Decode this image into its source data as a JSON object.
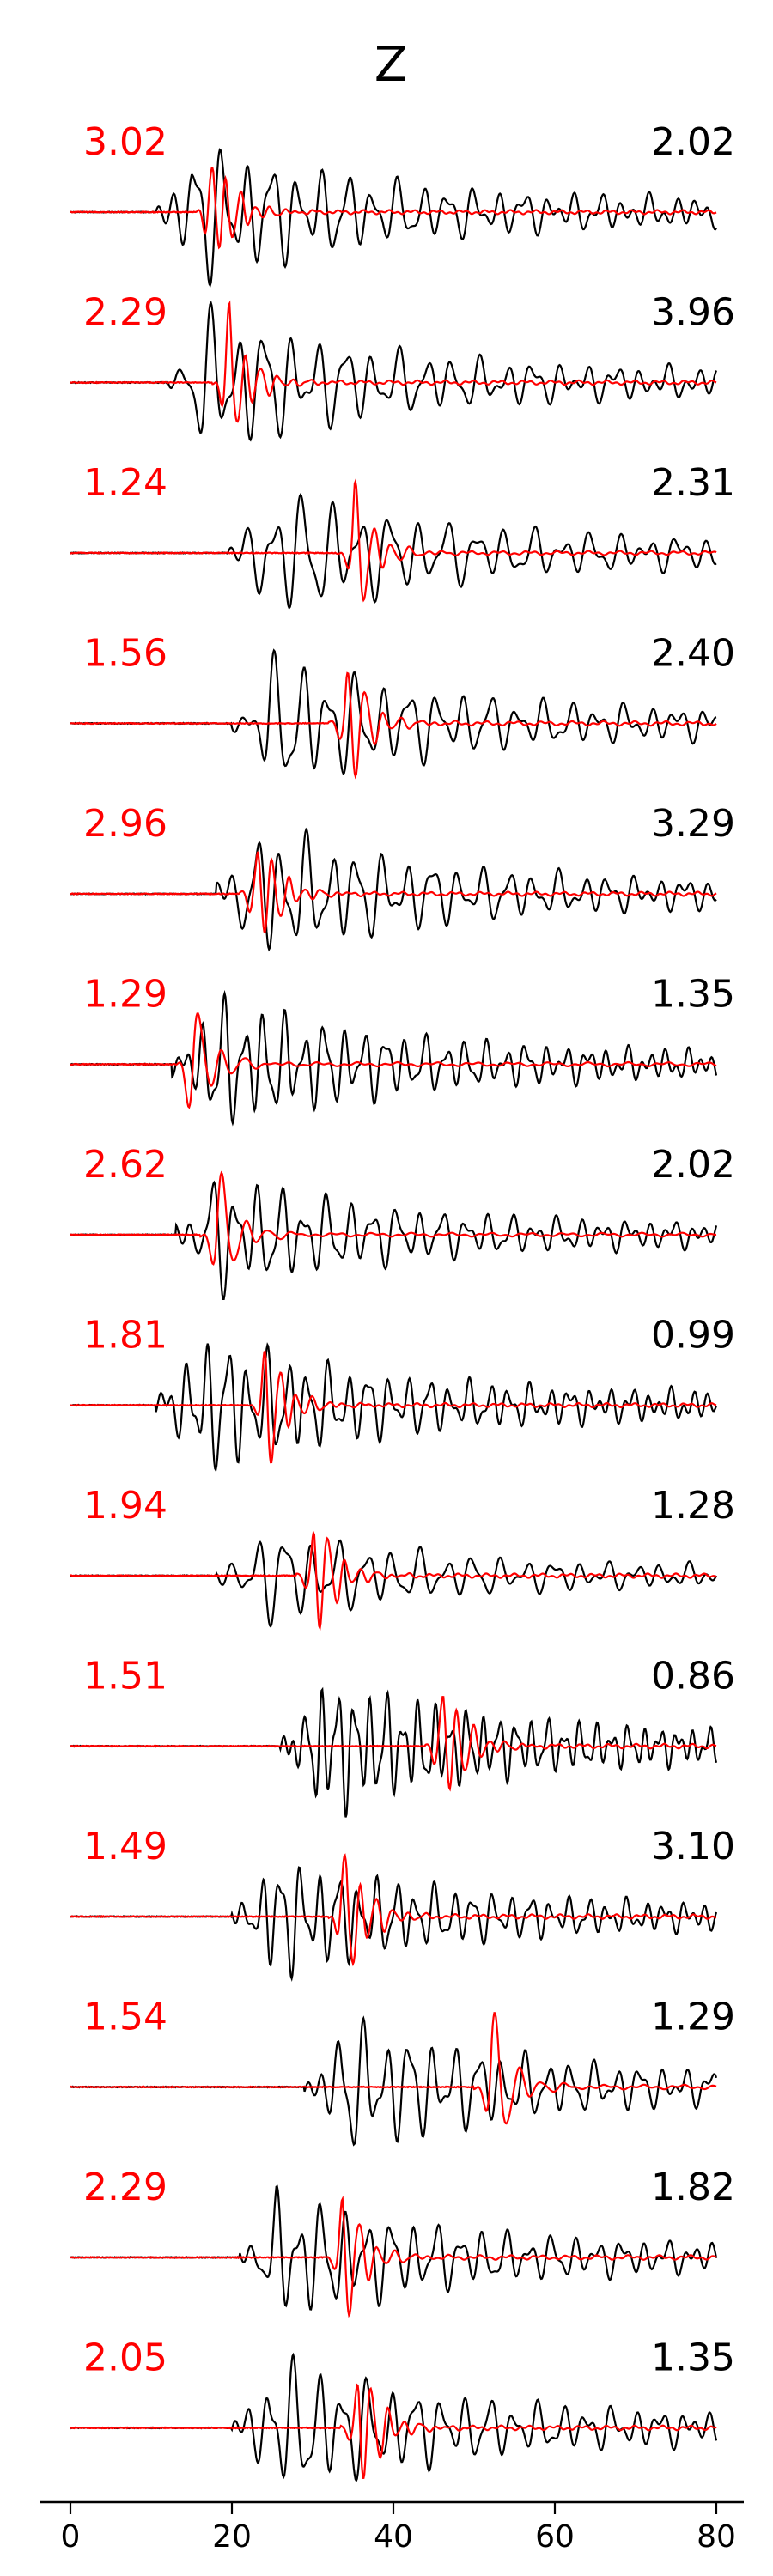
{
  "chart_data": {
    "type": "line",
    "title": "Z",
    "xlabel": "",
    "ylabel": "",
    "xlim": [
      -3.5,
      83
    ],
    "xticks": [
      0,
      20,
      40,
      60,
      80
    ],
    "grid": false,
    "colors": {
      "red": "#ff0000",
      "black": "#000000"
    },
    "traces": [
      {
        "red_label": "3.02",
        "black_label": "2.02",
        "red_onset": 15.5,
        "black_onset": 10.5,
        "red_amp": 0.85,
        "black_amp": 0.95,
        "red_freq": 0.55,
        "black_freq": 0.32
      },
      {
        "red_label": "2.29",
        "black_label": "3.96",
        "red_onset": 17.5,
        "black_onset": 12.0,
        "red_amp": 0.9,
        "black_amp": 0.95,
        "red_freq": 0.5,
        "black_freq": 0.3
      },
      {
        "red_label": "1.24",
        "black_label": "2.31",
        "red_onset": 33.0,
        "black_onset": 19.5,
        "red_amp": 0.85,
        "black_amp": 0.9,
        "red_freq": 0.45,
        "black_freq": 0.28
      },
      {
        "red_label": "1.56",
        "black_label": "2.40",
        "red_onset": 32.0,
        "black_onset": 20.0,
        "red_amp": 0.95,
        "black_amp": 0.9,
        "red_freq": 0.45,
        "black_freq": 0.3
      },
      {
        "red_label": "2.96",
        "black_label": "3.29",
        "red_onset": 21.0,
        "black_onset": 18.0,
        "red_amp": 0.85,
        "black_amp": 0.9,
        "red_freq": 0.5,
        "black_freq": 0.32
      },
      {
        "red_label": "1.29",
        "black_label": "1.35",
        "red_onset": 13.0,
        "black_onset": 12.5,
        "red_amp": 0.85,
        "black_amp": 0.9,
        "red_freq": 0.35,
        "black_freq": 0.4
      },
      {
        "red_label": "2.62",
        "black_label": "2.02",
        "red_onset": 16.0,
        "black_onset": 13.0,
        "red_amp": 0.8,
        "black_amp": 0.8,
        "red_freq": 0.35,
        "black_freq": 0.35
      },
      {
        "red_label": "1.81",
        "black_label": "0.99",
        "red_onset": 22.0,
        "black_onset": 10.5,
        "red_amp": 0.85,
        "black_amp": 0.95,
        "red_freq": 0.5,
        "black_freq": 0.4
      },
      {
        "red_label": "1.94",
        "black_label": "1.28",
        "red_onset": 28.0,
        "black_onset": 18.0,
        "red_amp": 0.9,
        "black_amp": 0.65,
        "red_freq": 0.5,
        "black_freq": 0.3
      },
      {
        "red_label": "1.51",
        "black_label": "0.86",
        "red_onset": 44.0,
        "black_onset": 26.0,
        "red_amp": 0.95,
        "black_amp": 0.9,
        "red_freq": 0.5,
        "black_freq": 0.5
      },
      {
        "red_label": "1.49",
        "black_label": "3.10",
        "red_onset": 32.0,
        "black_onset": 20.0,
        "red_amp": 0.95,
        "black_amp": 0.8,
        "red_freq": 0.5,
        "black_freq": 0.42
      },
      {
        "red_label": "1.54",
        "black_label": "1.29",
        "red_onset": 50.0,
        "black_onset": 29.0,
        "red_amp": 0.95,
        "black_amp": 0.9,
        "red_freq": 0.35,
        "black_freq": 0.35
      },
      {
        "red_label": "2.29",
        "black_label": "1.82",
        "red_onset": 31.5,
        "black_onset": 21.0,
        "red_amp": 0.95,
        "black_amp": 0.85,
        "red_freq": 0.45,
        "black_freq": 0.35
      },
      {
        "red_label": "2.05",
        "black_label": "1.35",
        "red_onset": 33.5,
        "black_onset": 20.0,
        "red_amp": 0.95,
        "black_amp": 0.95,
        "red_freq": 0.5,
        "black_freq": 0.33
      }
    ]
  }
}
